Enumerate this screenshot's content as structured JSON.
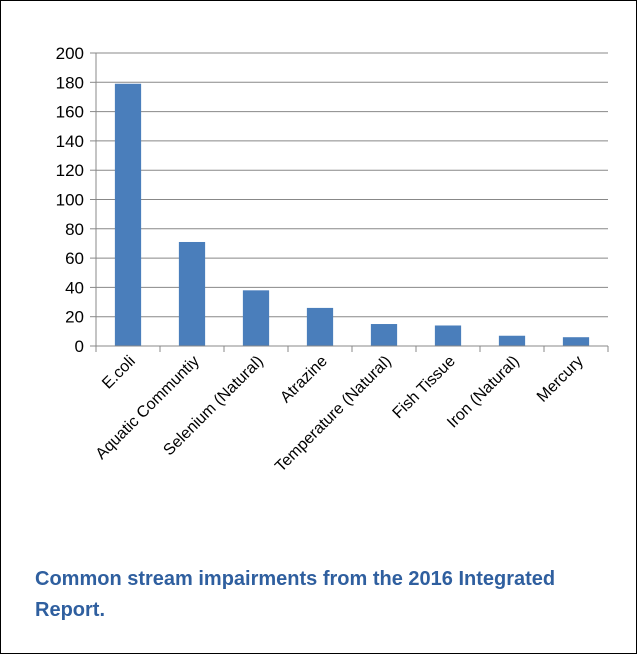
{
  "chart_data": {
    "type": "bar",
    "categories": [
      "E.coli",
      "Aquatic Communtiy",
      "Selenium (Natural)",
      "Atrazine",
      "Temperature (Natural)",
      "Fish Tissue",
      "Iron (Natural)",
      "Mercury"
    ],
    "values": [
      179,
      71,
      38,
      26,
      15,
      14,
      7,
      6
    ],
    "ylim": [
      0,
      200
    ],
    "yticks": [
      0,
      20,
      40,
      60,
      80,
      100,
      120,
      140,
      160,
      180,
      200
    ],
    "grid": true,
    "legend": "none",
    "colors": {
      "bar": "#4a7ebb",
      "grid": "#888888",
      "axis": "#888888"
    }
  },
  "caption": {
    "text": "Common stream impairments from the 2016 Integrated Report."
  }
}
